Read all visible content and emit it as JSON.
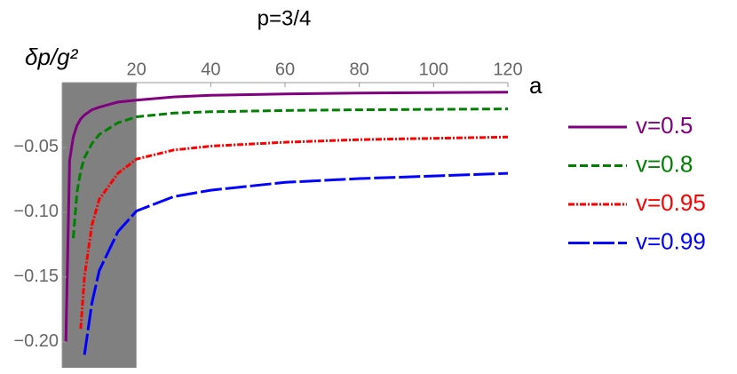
{
  "chart_data": {
    "type": "line",
    "title": "p=3/4",
    "x_label": "a",
    "y_label": "δp/g²",
    "x": [
      1,
      2,
      3,
      4,
      5,
      6,
      8,
      10,
      15,
      20,
      30,
      40,
      60,
      80,
      100,
      120
    ],
    "series": [
      {
        "name": "v=0.5",
        "color": "#800080",
        "dash": "solid",
        "values": [
          -0.2,
          -0.06,
          -0.042,
          -0.033,
          -0.028,
          -0.025,
          -0.021,
          -0.019,
          -0.015,
          -0.0135,
          -0.011,
          -0.0098,
          -0.0087,
          -0.0081,
          -0.0077,
          -0.0074
        ]
      },
      {
        "name": "v=0.8",
        "color": "#008000",
        "dash": "dashed",
        "values": [
          null,
          null,
          -0.12,
          -0.085,
          -0.068,
          -0.058,
          -0.047,
          -0.04,
          -0.031,
          -0.0264,
          -0.0235,
          -0.0225,
          -0.0215,
          -0.021,
          -0.0206,
          -0.0203
        ]
      },
      {
        "name": "v=0.95",
        "color": "#ff0000",
        "dash": "dashdot",
        "values": [
          null,
          null,
          null,
          null,
          -0.19,
          -0.15,
          -0.11,
          -0.09,
          -0.07,
          -0.059,
          -0.052,
          -0.049,
          -0.046,
          -0.044,
          -0.043,
          -0.042
        ]
      },
      {
        "name": "v=0.99",
        "color": "#0000ff",
        "dash": "longdash",
        "values": [
          null,
          null,
          null,
          null,
          null,
          -0.21,
          -0.17,
          -0.145,
          -0.115,
          -0.099,
          -0.088,
          -0.083,
          -0.077,
          -0.074,
          -0.072,
          -0.07
        ]
      }
    ],
    "shaded_x": [
      0,
      20
    ],
    "shade_color": "#808080",
    "xlim": [
      0,
      120
    ],
    "ylim": [
      -0.22,
      0
    ],
    "xticks": [
      20,
      40,
      60,
      80,
      100,
      120
    ],
    "yticks": [
      {
        "value": -0.05,
        "label": "−0.05"
      },
      {
        "value": -0.1,
        "label": "−0.10"
      },
      {
        "value": -0.15,
        "label": "−0.15"
      },
      {
        "value": -0.2,
        "label": "−0.20"
      }
    ],
    "legend": "right"
  }
}
